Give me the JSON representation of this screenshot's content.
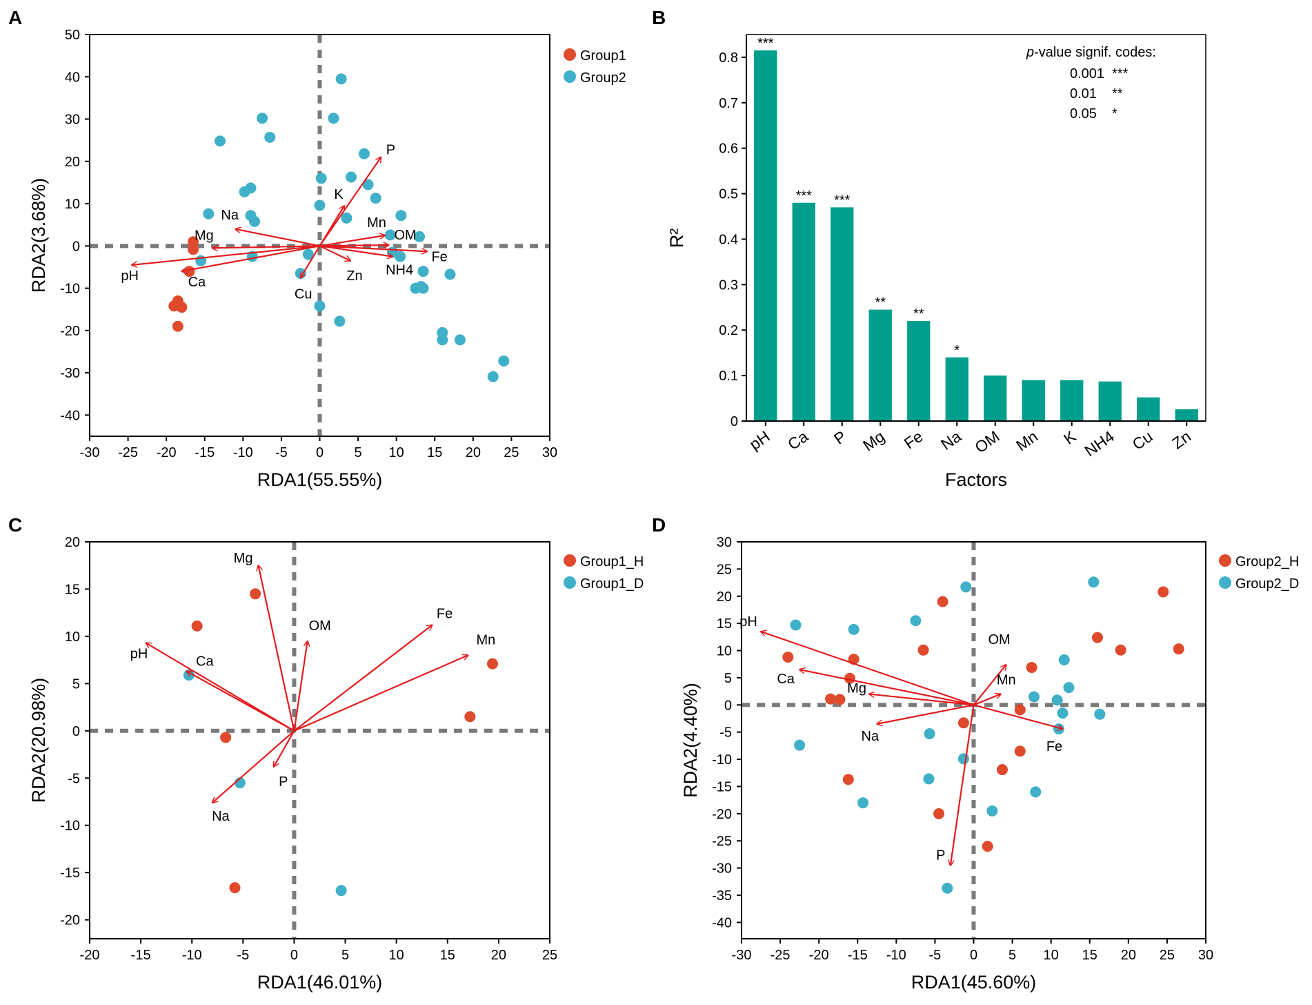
{
  "chart_data": [
    {
      "type": "scatter",
      "panel": "A",
      "xlabel": "RDA1(55.55%)",
      "ylabel": "RDA2(3.68%)",
      "xlim": [
        -30,
        30
      ],
      "ylim": [
        -45,
        50
      ],
      "xticks": [
        -30,
        -25,
        -20,
        -15,
        -10,
        -5,
        0,
        5,
        10,
        15,
        20,
        25,
        30
      ],
      "yticks": [
        -40,
        -30,
        -20,
        -10,
        0,
        10,
        20,
        30,
        40,
        50
      ],
      "series": [
        {
          "name": "Group1",
          "color": "#e04a2c",
          "points": [
            [
              -16.5,
              1
            ],
            [
              -16.5,
              -0.8
            ],
            [
              -17,
              -6
            ],
            [
              -18.5,
              -13
            ],
            [
              -18,
              -14.5
            ],
            [
              -19,
              -14.2
            ],
            [
              -18.5,
              -19
            ]
          ]
        },
        {
          "name": "Group2",
          "color": "#3fb0c8",
          "points": [
            [
              2.8,
              39.5
            ],
            [
              -7.5,
              30.2
            ],
            [
              1.8,
              30.2
            ],
            [
              -6.5,
              25.7
            ],
            [
              -13,
              24.8
            ],
            [
              5.8,
              21.8
            ],
            [
              4.1,
              16.3
            ],
            [
              0.2,
              16
            ],
            [
              6.3,
              14.5
            ],
            [
              -9,
              13.7
            ],
            [
              -9.8,
              12.8
            ],
            [
              7.3,
              11.3
            ],
            [
              -8.5,
              5.8
            ],
            [
              -9,
              7.2
            ],
            [
              -14.5,
              7.6
            ],
            [
              10.6,
              7.2
            ],
            [
              3.5,
              6.6
            ],
            [
              0,
              9.6
            ],
            [
              9.2,
              2.6
            ],
            [
              13,
              2.2
            ],
            [
              -1.5,
              -2
            ],
            [
              -15.5,
              -3.5
            ],
            [
              -8.8,
              -2.5
            ],
            [
              9.5,
              -1.5
            ],
            [
              10.5,
              -2.5
            ],
            [
              13.5,
              -6
            ],
            [
              17,
              -6.7
            ],
            [
              -2.5,
              -6.5
            ],
            [
              12.5,
              -10
            ],
            [
              13.2,
              -9.6
            ],
            [
              13.5,
              -10
            ],
            [
              0,
              -14.2
            ],
            [
              2.6,
              -17.8
            ],
            [
              16,
              -20.5
            ],
            [
              16,
              -22.2
            ],
            [
              18.3,
              -22.2
            ],
            [
              24,
              -27.2
            ],
            [
              22.6,
              -30.9
            ]
          ]
        }
      ],
      "vectors": [
        {
          "label": "pH",
          "x": -24.5,
          "y": -4.5
        },
        {
          "label": "Ca",
          "x": -18,
          "y": -6
        },
        {
          "label": "Mg",
          "x": -14,
          "y": -0.5
        },
        {
          "label": "Na",
          "x": -11,
          "y": 4
        },
        {
          "label": "P",
          "x": 8,
          "y": 21
        },
        {
          "label": "K",
          "x": 3.2,
          "y": 9.5
        },
        {
          "label": "Mn",
          "x": 8.5,
          "y": 2.5
        },
        {
          "label": "OM",
          "x": 9,
          "y": 0.2
        },
        {
          "label": "Fe",
          "x": 14,
          "y": -1.3
        },
        {
          "label": "NH4",
          "x": 9.5,
          "y": -2.5
        },
        {
          "label": "Zn",
          "x": 4,
          "y": -3.5
        },
        {
          "label": "Cu",
          "x": -2.5,
          "y": -7.5
        }
      ]
    },
    {
      "type": "bar",
      "panel": "B",
      "title": "",
      "xlabel": "Factors",
      "ylabel": "R²",
      "ylim": [
        0,
        0.85
      ],
      "yticks": [
        0,
        0.1,
        0.2,
        0.3,
        0.4,
        0.5,
        0.6,
        0.7,
        0.8
      ],
      "categories": [
        "pH",
        "Ca",
        "P",
        "Mg",
        "Fe",
        "Na",
        "OM",
        "Mn",
        "K",
        "NH4",
        "Cu",
        "Zn"
      ],
      "values": [
        0.815,
        0.48,
        0.47,
        0.245,
        0.22,
        0.14,
        0.1,
        0.09,
        0.09,
        0.087,
        0.052,
        0.026
      ],
      "significance": [
        "***",
        "***",
        "***",
        "**",
        "**",
        "*",
        "",
        "",
        "",
        "",
        "",
        ""
      ],
      "color": "#009e8c",
      "legend_title_italic": "p",
      "legend_title_rest": "-value signif. codes:",
      "legend_rows": [
        {
          "level": "0.001",
          "code": "***"
        },
        {
          "level": "0.01",
          "code": "**"
        },
        {
          "level": "0.05",
          "code": "*"
        }
      ]
    },
    {
      "type": "scatter",
      "panel": "C",
      "xlabel": "RDA1(46.01%)",
      "ylabel": "RDA2(20.98%)",
      "xlim": [
        -20,
        25
      ],
      "ylim": [
        -22,
        20
      ],
      "xticks": [
        -20,
        -15,
        -10,
        -5,
        0,
        5,
        10,
        15,
        20,
        25
      ],
      "yticks": [
        -20,
        -15,
        -10,
        -5,
        0,
        5,
        10,
        15,
        20
      ],
      "series": [
        {
          "name": "Group1_H",
          "color": "#e04a2c",
          "points": [
            [
              -3.8,
              14.5
            ],
            [
              -9.5,
              11.1
            ],
            [
              19.4,
              7.1
            ],
            [
              17.2,
              1.5
            ],
            [
              -6.7,
              -0.7
            ],
            [
              -5.8,
              -16.6
            ]
          ]
        },
        {
          "name": "Group1_D",
          "color": "#3fb0c8",
          "points": [
            [
              -10.3,
              5.9
            ],
            [
              -5.3,
              -5.5
            ],
            [
              4.6,
              -16.9
            ]
          ]
        }
      ],
      "vectors": [
        {
          "label": "Mg",
          "x": -3.5,
          "y": 17.5
        },
        {
          "label": "OM",
          "x": 1.3,
          "y": 9.5
        },
        {
          "label": "pH",
          "x": -14.5,
          "y": 9.3
        },
        {
          "label": "Ca",
          "x": -10.5,
          "y": 6.3
        },
        {
          "label": "Fe",
          "x": 13.5,
          "y": 11.2
        },
        {
          "label": "Mn",
          "x": 17,
          "y": 8
        },
        {
          "label": "P",
          "x": -2,
          "y": -3.8
        },
        {
          "label": "Na",
          "x": -8,
          "y": -7.6
        }
      ]
    },
    {
      "type": "scatter",
      "panel": "D",
      "xlabel": "RDA1(45.60%)",
      "ylabel": "RDA2(4.40%)",
      "xlim": [
        -30,
        30
      ],
      "ylim": [
        -43,
        30
      ],
      "xticks": [
        -30,
        -25,
        -20,
        -15,
        -10,
        -5,
        0,
        5,
        10,
        15,
        20,
        25,
        30
      ],
      "yticks": [
        -40,
        -35,
        -30,
        -25,
        -20,
        -15,
        -10,
        -5,
        0,
        5,
        10,
        15,
        20,
        25,
        30
      ],
      "series": [
        {
          "name": "Group2_H",
          "color": "#e04a2c",
          "points": [
            [
              -4,
              19
            ],
            [
              24.5,
              20.8
            ],
            [
              16,
              12.4
            ],
            [
              19,
              10.1
            ],
            [
              26.5,
              10.3
            ],
            [
              -6.5,
              10.1
            ],
            [
              -24,
              8.8
            ],
            [
              -15.5,
              8.4
            ],
            [
              7.5,
              6.9
            ],
            [
              -16,
              4.9
            ],
            [
              -18.5,
              1.1
            ],
            [
              -17.3,
              1
            ],
            [
              6,
              -0.9
            ],
            [
              -1.3,
              -3.3
            ],
            [
              6,
              -8.5
            ],
            [
              3.7,
              -11.9
            ],
            [
              -16.2,
              -13.7
            ],
            [
              -4.5,
              -20
            ],
            [
              1.8,
              -26
            ]
          ]
        },
        {
          "name": "Group2_D",
          "color": "#3fb0c8",
          "points": [
            [
              -1,
              21.7
            ],
            [
              15.5,
              22.6
            ],
            [
              -23,
              14.7
            ],
            [
              -15.5,
              13.9
            ],
            [
              -7.5,
              15.5
            ],
            [
              11.7,
              8.3
            ],
            [
              12.3,
              3.2
            ],
            [
              7.8,
              1.5
            ],
            [
              10.8,
              0.9
            ],
            [
              16.3,
              -1.7
            ],
            [
              11.5,
              -1.5
            ],
            [
              11,
              -4.4
            ],
            [
              -22.5,
              -7.4
            ],
            [
              -5.7,
              -5.3
            ],
            [
              -1.3,
              -9.9
            ],
            [
              -5.8,
              -13.6
            ],
            [
              -14.3,
              -18
            ],
            [
              2.4,
              -19.5
            ],
            [
              8,
              -16
            ],
            [
              -3.4,
              -33.7
            ]
          ]
        }
      ],
      "vectors": [
        {
          "label": "pH",
          "x": -27.5,
          "y": 13.5
        },
        {
          "label": "Ca",
          "x": -22.5,
          "y": 6.5
        },
        {
          "label": "Mg",
          "x": -13.5,
          "y": 2
        },
        {
          "label": "Na",
          "x": -12.5,
          "y": -3.5
        },
        {
          "label": "OM",
          "x": 4.2,
          "y": 7.4
        },
        {
          "label": "Mn",
          "x": 3.5,
          "y": 2
        },
        {
          "label": "Fe",
          "x": 11.5,
          "y": -4.4
        },
        {
          "label": "P",
          "x": -3,
          "y": -29.5
        }
      ]
    }
  ]
}
